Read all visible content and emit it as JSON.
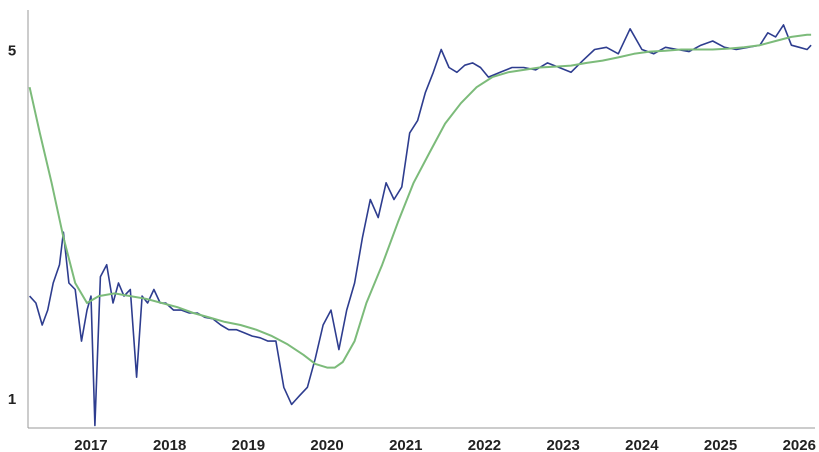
{
  "chart_data": {
    "type": "line",
    "title": "",
    "xlabel": "",
    "ylabel": "",
    "x_ticks": [
      "2017",
      "2018",
      "2019",
      "2020",
      "2021",
      "2022",
      "2023",
      "2024",
      "2025",
      "2026"
    ],
    "y_ticks": [
      1,
      5
    ],
    "xlim": [
      2016.2,
      2026.2
    ],
    "ylim": [
      0.87,
      6.0
    ],
    "y_scale": "log",
    "grid": false,
    "legend": "none",
    "series": [
      {
        "color": "#2e3d8f",
        "x": [
          2016.22,
          2016.3,
          2016.38,
          2016.45,
          2016.52,
          2016.6,
          2016.65,
          2016.72,
          2016.8,
          2016.88,
          2016.95,
          2017.0,
          2017.05,
          2017.12,
          2017.2,
          2017.28,
          2017.35,
          2017.42,
          2017.5,
          2017.58,
          2017.65,
          2017.72,
          2017.8,
          2017.88,
          2017.95,
          2018.05,
          2018.15,
          2018.25,
          2018.35,
          2018.45,
          2018.55,
          2018.65,
          2018.75,
          2018.85,
          2018.95,
          2019.05,
          2019.15,
          2019.25,
          2019.35,
          2019.45,
          2019.55,
          2019.6,
          2019.65,
          2019.75,
          2019.85,
          2019.95,
          2020.05,
          2020.15,
          2020.25,
          2020.35,
          2020.45,
          2020.55,
          2020.65,
          2020.75,
          2020.85,
          2020.95,
          2021.05,
          2021.15,
          2021.25,
          2021.35,
          2021.45,
          2021.55,
          2021.65,
          2021.75,
          2021.85,
          2021.95,
          2022.05,
          2022.2,
          2022.35,
          2022.5,
          2022.65,
          2022.8,
          2022.95,
          2023.1,
          2023.25,
          2023.4,
          2023.55,
          2023.7,
          2023.85,
          2024.0,
          2024.15,
          2024.3,
          2024.45,
          2024.6,
          2024.75,
          2024.9,
          2025.05,
          2025.2,
          2025.35,
          2025.5,
          2025.6,
          2025.7,
          2025.8,
          2025.9,
          2026.0,
          2026.1,
          2026.15
        ],
        "values": [
          1.6,
          1.55,
          1.4,
          1.5,
          1.7,
          1.85,
          2.15,
          1.7,
          1.65,
          1.3,
          1.5,
          1.6,
          0.88,
          1.75,
          1.85,
          1.55,
          1.7,
          1.6,
          1.65,
          1.1,
          1.6,
          1.55,
          1.65,
          1.55,
          1.55,
          1.5,
          1.5,
          1.48,
          1.48,
          1.45,
          1.44,
          1.4,
          1.37,
          1.37,
          1.35,
          1.33,
          1.32,
          1.3,
          1.3,
          1.05,
          0.97,
          0.99,
          1.01,
          1.05,
          1.2,
          1.4,
          1.5,
          1.25,
          1.5,
          1.7,
          2.1,
          2.5,
          2.3,
          2.7,
          2.5,
          2.65,
          3.4,
          3.6,
          4.1,
          4.5,
          5.0,
          4.6,
          4.5,
          4.65,
          4.7,
          4.6,
          4.4,
          4.5,
          4.6,
          4.6,
          4.55,
          4.7,
          4.6,
          4.5,
          4.75,
          5.0,
          5.05,
          4.9,
          5.5,
          5.0,
          4.9,
          5.05,
          5.0,
          4.95,
          5.1,
          5.2,
          5.05,
          5.0,
          5.05,
          5.1,
          5.4,
          5.3,
          5.6,
          5.1,
          5.05,
          5.0,
          5.1
        ]
      },
      {
        "color": "#7cbb7a",
        "x": [
          2016.22,
          2016.35,
          2016.5,
          2016.65,
          2016.8,
          2016.95,
          2017.1,
          2017.3,
          2017.5,
          2017.7,
          2017.9,
          2018.1,
          2018.3,
          2018.5,
          2018.7,
          2018.9,
          2019.1,
          2019.3,
          2019.5,
          2019.7,
          2019.85,
          2020.0,
          2020.1,
          2020.2,
          2020.35,
          2020.5,
          2020.7,
          2020.9,
          2021.1,
          2021.3,
          2021.5,
          2021.7,
          2021.9,
          2022.1,
          2022.3,
          2022.5,
          2022.7,
          2022.9,
          2023.1,
          2023.3,
          2023.5,
          2023.7,
          2023.9,
          2024.1,
          2024.3,
          2024.5,
          2024.7,
          2024.9,
          2025.1,
          2025.3,
          2025.5,
          2025.7,
          2025.9,
          2026.1,
          2026.15
        ],
        "values": [
          4.2,
          3.4,
          2.7,
          2.1,
          1.7,
          1.55,
          1.6,
          1.62,
          1.6,
          1.58,
          1.55,
          1.52,
          1.48,
          1.45,
          1.42,
          1.4,
          1.37,
          1.33,
          1.28,
          1.22,
          1.17,
          1.15,
          1.15,
          1.18,
          1.3,
          1.55,
          1.85,
          2.25,
          2.7,
          3.1,
          3.55,
          3.9,
          4.2,
          4.4,
          4.5,
          4.55,
          4.6,
          4.62,
          4.64,
          4.7,
          4.75,
          4.82,
          4.9,
          4.95,
          4.97,
          5.0,
          5.0,
          5.0,
          5.02,
          5.05,
          5.1,
          5.2,
          5.3,
          5.35,
          5.35
        ]
      }
    ]
  }
}
